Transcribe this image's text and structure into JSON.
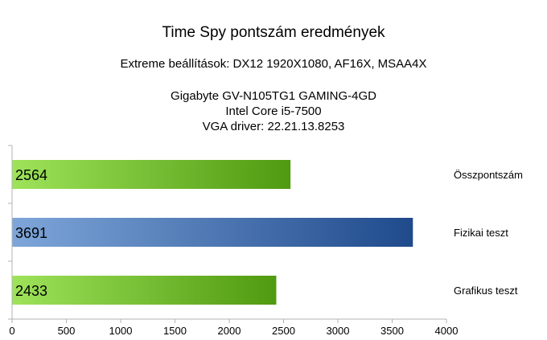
{
  "chart_data": {
    "type": "bar",
    "orientation": "horizontal",
    "title": "Time Spy pontszám eredmények",
    "subtitle": "Extreme beállítások: DX12 1920X1080, AF16X, MSAA4X",
    "info_lines": [
      "Gigabyte GV-N105TG1 GAMING-4GD",
      "Intel Core i5-7500",
      "VGA driver: 22.21.13.8253"
    ],
    "categories": [
      "Összpontszám",
      "Fizikai teszt",
      "Grafikus teszt"
    ],
    "values": [
      2564,
      3691,
      2433
    ],
    "value_labels": [
      "2564",
      "3691",
      "2433"
    ],
    "bar_colors": [
      "#5aa41c",
      "#2e5596",
      "#5aa41c"
    ],
    "xlim": [
      0,
      4000
    ],
    "xticks": [
      "0",
      "500",
      "1000",
      "1500",
      "2000",
      "2500",
      "3000",
      "3500",
      "4000"
    ],
    "xlabel": "",
    "ylabel": "",
    "grid": false,
    "legend": "none"
  }
}
